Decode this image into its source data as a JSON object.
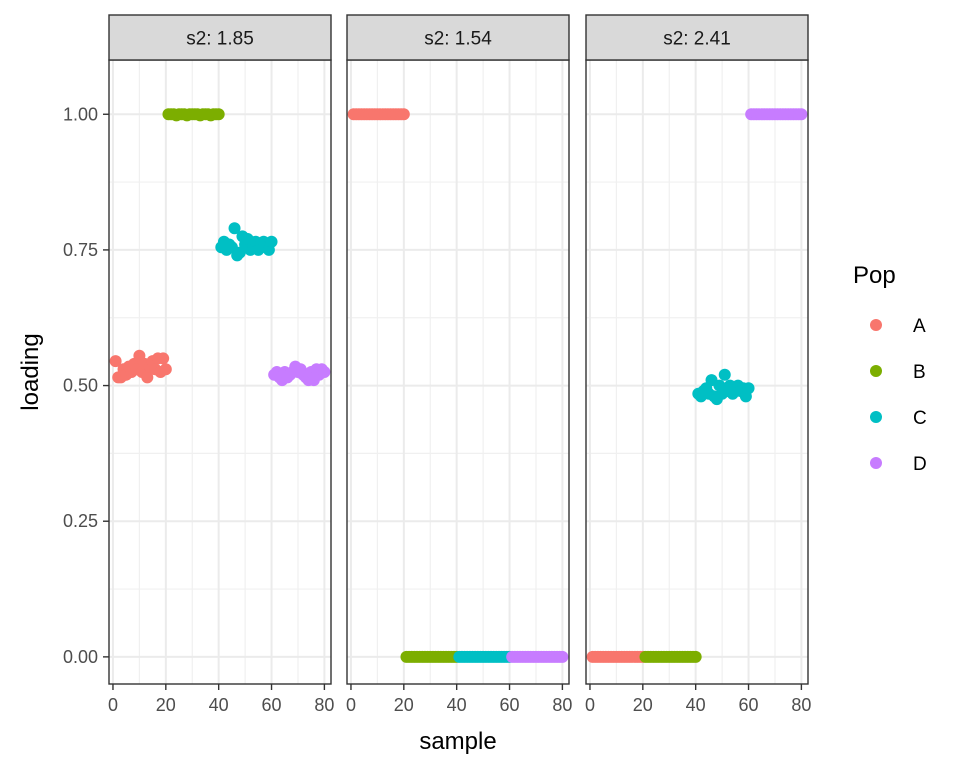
{
  "chart_data": {
    "type": "scatter",
    "xlabel": "sample",
    "ylabel": "loading",
    "xlim": [
      -1.5,
      82.5
    ],
    "ylim": [
      -0.05,
      1.1
    ],
    "x_ticks": [
      0,
      20,
      40,
      60,
      80
    ],
    "x_tick_labels": [
      "0",
      "20",
      "40",
      "60",
      "80"
    ],
    "y_ticks": [
      0.0,
      0.25,
      0.5,
      0.75,
      1.0
    ],
    "y_tick_labels": [
      "0.00",
      "0.25",
      "0.50",
      "0.75",
      "1.00"
    ],
    "grid": true,
    "legend": {
      "title": "Pop",
      "position": "right",
      "entries": [
        {
          "label": "A",
          "color": "#F8766D"
        },
        {
          "label": "B",
          "color": "#7CAE00"
        },
        {
          "label": "C",
          "color": "#00BFC4"
        },
        {
          "label": "D",
          "color": "#C77CFF"
        }
      ]
    },
    "panels": [
      {
        "title": "s2: 1.85",
        "series": [
          {
            "name": "A",
            "x": [
              1,
              2,
              3,
              4,
              5,
              6,
              7,
              8,
              9,
              10,
              11,
              12,
              13,
              14,
              15,
              16,
              17,
              18,
              19,
              20
            ],
            "y": [
              0.545,
              0.515,
              0.515,
              0.53,
              0.52,
              0.535,
              0.525,
              0.54,
              0.53,
              0.555,
              0.525,
              0.54,
              0.515,
              0.535,
              0.545,
              0.53,
              0.55,
              0.525,
              0.55,
              0.53
            ]
          },
          {
            "name": "B",
            "x": [
              21,
              22,
              23,
              24,
              25,
              26,
              27,
              28,
              29,
              30,
              31,
              32,
              33,
              34,
              35,
              36,
              37,
              38,
              39,
              40
            ],
            "y": [
              1.0,
              1.0,
              1.0,
              0.998,
              1.0,
              1.0,
              1.0,
              0.998,
              1.0,
              1.0,
              1.0,
              1.0,
              0.998,
              1.0,
              1.0,
              1.0,
              0.998,
              1.0,
              1.0,
              1.0
            ]
          },
          {
            "name": "C",
            "x": [
              41,
              42,
              43,
              44,
              45,
              46,
              47,
              48,
              49,
              50,
              51,
              52,
              53,
              54,
              55,
              56,
              57,
              58,
              59,
              60
            ],
            "y": [
              0.755,
              0.765,
              0.75,
              0.76,
              0.755,
              0.79,
              0.74,
              0.745,
              0.775,
              0.76,
              0.77,
              0.75,
              0.755,
              0.765,
              0.75,
              0.76,
              0.765,
              0.755,
              0.75,
              0.765
            ]
          },
          {
            "name": "D",
            "x": [
              61,
              62,
              63,
              64,
              65,
              66,
              67,
              68,
              69,
              70,
              71,
              72,
              73,
              74,
              75,
              76,
              77,
              78,
              79,
              80
            ],
            "y": [
              0.52,
              0.525,
              0.515,
              0.51,
              0.525,
              0.515,
              0.52,
              0.525,
              0.535,
              0.525,
              0.53,
              0.52,
              0.515,
              0.51,
              0.525,
              0.51,
              0.53,
              0.52,
              0.53,
              0.525
            ]
          }
        ]
      },
      {
        "title": "s2: 1.54",
        "series": [
          {
            "name": "A",
            "x": [
              1,
              2,
              3,
              4,
              5,
              6,
              7,
              8,
              9,
              10,
              11,
              12,
              13,
              14,
              15,
              16,
              17,
              18,
              19,
              20
            ],
            "y": [
              1,
              1,
              1,
              1,
              1,
              1,
              1,
              1,
              1,
              1,
              1,
              1,
              1,
              1,
              1,
              1,
              1,
              1,
              1,
              1
            ]
          },
          {
            "name": "B",
            "x": [
              21,
              22,
              23,
              24,
              25,
              26,
              27,
              28,
              29,
              30,
              31,
              32,
              33,
              34,
              35,
              36,
              37,
              38,
              39,
              40
            ],
            "y": [
              0,
              0,
              0,
              0,
              0,
              0,
              0,
              0,
              0,
              0,
              0,
              0,
              0,
              0,
              0,
              0,
              0,
              0,
              0,
              0
            ]
          },
          {
            "name": "C",
            "x": [
              41,
              42,
              43,
              44,
              45,
              46,
              47,
              48,
              49,
              50,
              51,
              52,
              53,
              54,
              55,
              56,
              57,
              58,
              59,
              60
            ],
            "y": [
              0,
              0,
              0,
              0,
              0,
              0,
              0,
              0,
              0,
              0,
              0,
              0,
              0,
              0,
              0,
              0,
              0,
              0,
              0,
              0
            ]
          },
          {
            "name": "D",
            "x": [
              61,
              62,
              63,
              64,
              65,
              66,
              67,
              68,
              69,
              70,
              71,
              72,
              73,
              74,
              75,
              76,
              77,
              78,
              79,
              80
            ],
            "y": [
              0,
              0,
              0,
              0,
              0,
              0,
              0,
              0,
              0,
              0,
              0,
              0,
              0,
              0,
              0,
              0,
              0,
              0,
              0,
              0
            ]
          }
        ]
      },
      {
        "title": "s2: 2.41",
        "series": [
          {
            "name": "A",
            "x": [
              1,
              2,
              3,
              4,
              5,
              6,
              7,
              8,
              9,
              10,
              11,
              12,
              13,
              14,
              15,
              16,
              17,
              18,
              19,
              20
            ],
            "y": [
              0,
              0,
              0,
              0,
              0,
              0,
              0,
              0,
              0,
              0,
              0,
              0,
              0,
              0,
              0,
              0,
              0,
              0,
              0,
              0
            ]
          },
          {
            "name": "B",
            "x": [
              21,
              22,
              23,
              24,
              25,
              26,
              27,
              28,
              29,
              30,
              31,
              32,
              33,
              34,
              35,
              36,
              37,
              38,
              39,
              40
            ],
            "y": [
              0,
              0,
              0,
              0,
              0,
              0,
              0,
              0,
              0,
              0,
              0,
              0,
              0,
              0,
              0,
              0,
              0,
              0,
              0,
              0
            ]
          },
          {
            "name": "C",
            "x": [
              41,
              42,
              43,
              44,
              45,
              46,
              47,
              48,
              49,
              50,
              51,
              52,
              53,
              54,
              55,
              56,
              57,
              58,
              59,
              60
            ],
            "y": [
              0.485,
              0.48,
              0.49,
              0.495,
              0.485,
              0.51,
              0.48,
              0.475,
              0.5,
              0.485,
              0.52,
              0.49,
              0.5,
              0.485,
              0.495,
              0.5,
              0.49,
              0.495,
              0.48,
              0.495
            ]
          },
          {
            "name": "D",
            "x": [
              61,
              62,
              63,
              64,
              65,
              66,
              67,
              68,
              69,
              70,
              71,
              72,
              73,
              74,
              75,
              76,
              77,
              78,
              79,
              80
            ],
            "y": [
              1,
              1,
              1,
              1,
              1,
              1,
              1,
              1,
              1,
              1,
              1,
              1,
              1,
              1,
              1,
              1,
              1,
              1,
              1,
              1
            ]
          }
        ]
      }
    ]
  }
}
